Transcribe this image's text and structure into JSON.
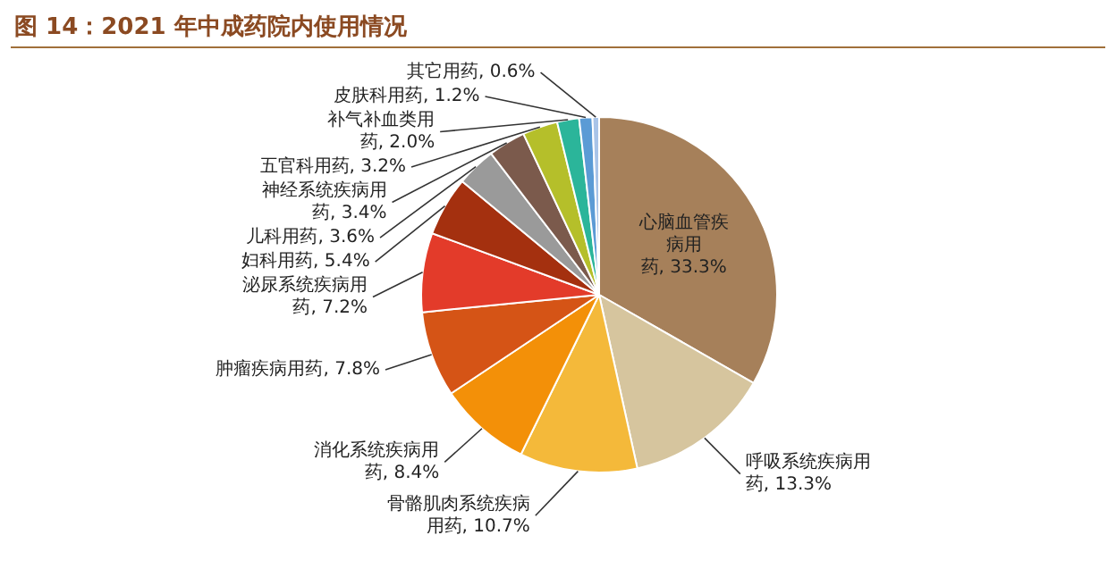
{
  "chart_data": {
    "type": "pie",
    "title": "图 14：2021 年中成药院内使用情况",
    "categories": [
      "心脑血管疾病用药",
      "呼吸系统疾病用药",
      "骨骼肌肉系统疾病用药",
      "消化系统疾病用药",
      "肿瘤疾病用药",
      "泌尿系统疾病用药",
      "妇科用药",
      "儿科用药",
      "神经系统疾病用药",
      "五官科用药",
      "补气补血类用药",
      "皮肤科用药",
      "其它用药"
    ],
    "values": [
      33.3,
      13.3,
      10.7,
      8.4,
      7.8,
      7.2,
      5.4,
      3.6,
      3.4,
      3.2,
      2.0,
      1.2,
      0.6
    ],
    "value_labels": [
      ", 33.3%",
      ", 13.3%",
      ", 10.7%",
      ", 8.4%",
      ", 7.8%",
      ", 7.2%",
      ", 5.4%",
      ", 3.6%",
      ", 3.4%",
      ", 3.2%",
      ", 2.0%",
      ", 1.2%",
      ", 0.6%"
    ],
    "colors": [
      "#a6805a",
      "#d6c59e",
      "#f4b93a",
      "#f39008",
      "#d55416",
      "#e33b2a",
      "#a4300f",
      "#9a9a9a",
      "#7b5a4c",
      "#b5bf2a",
      "#2bb59a",
      "#5b9bd5",
      "#a9c4e8"
    ],
    "legend": false
  }
}
